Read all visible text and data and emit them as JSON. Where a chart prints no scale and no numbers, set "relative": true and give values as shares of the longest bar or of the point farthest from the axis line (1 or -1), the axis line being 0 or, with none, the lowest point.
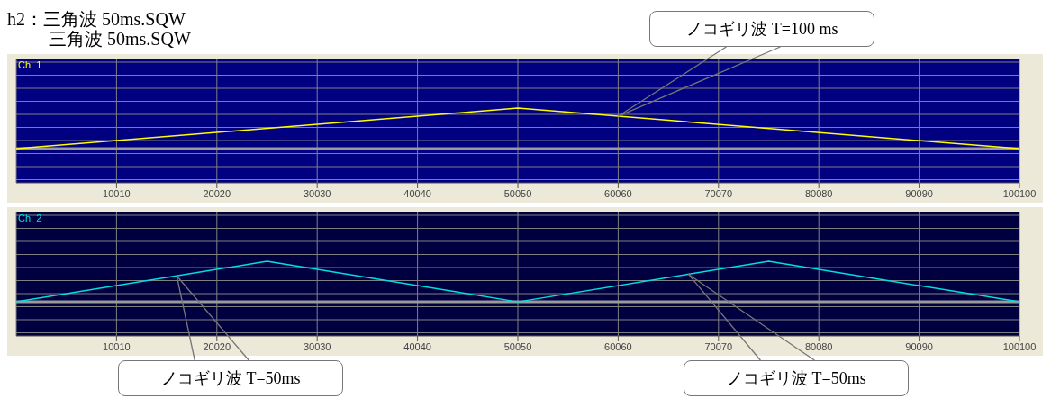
{
  "chart_data": [
    {
      "type": "line",
      "title": "h2：三角波 50ms.SQW",
      "subtitle": "三角波 50ms.SQW",
      "relative": true,
      "grid": true,
      "xlim": [
        0,
        100100
      ],
      "xticks": [
        10010,
        20020,
        30030,
        40040,
        50050,
        60060,
        70070,
        80080,
        90090,
        100100
      ],
      "series": [
        {
          "name": "Ch: 1",
          "color": "#ffff00",
          "x": [
            0,
            50050,
            100100
          ],
          "values": [
            0,
            1,
            0
          ]
        }
      ],
      "annotations": [
        "ノコギリ波 T=100 ms"
      ]
    },
    {
      "type": "line",
      "relative": true,
      "grid": true,
      "xlim": [
        0,
        100100
      ],
      "xticks": [
        10010,
        20020,
        30030,
        40040,
        50050,
        60060,
        70070,
        80080,
        90090,
        100100
      ],
      "series": [
        {
          "name": "Ch: 2",
          "color": "#00e0e0",
          "x": [
            0,
            25025,
            50050,
            75075,
            100100
          ],
          "values": [
            0,
            1,
            0,
            1,
            0
          ]
        }
      ],
      "annotations": [
        "ノコギリ波 T=50ms",
        "ノコギリ波 T=50ms"
      ]
    }
  ]
}
